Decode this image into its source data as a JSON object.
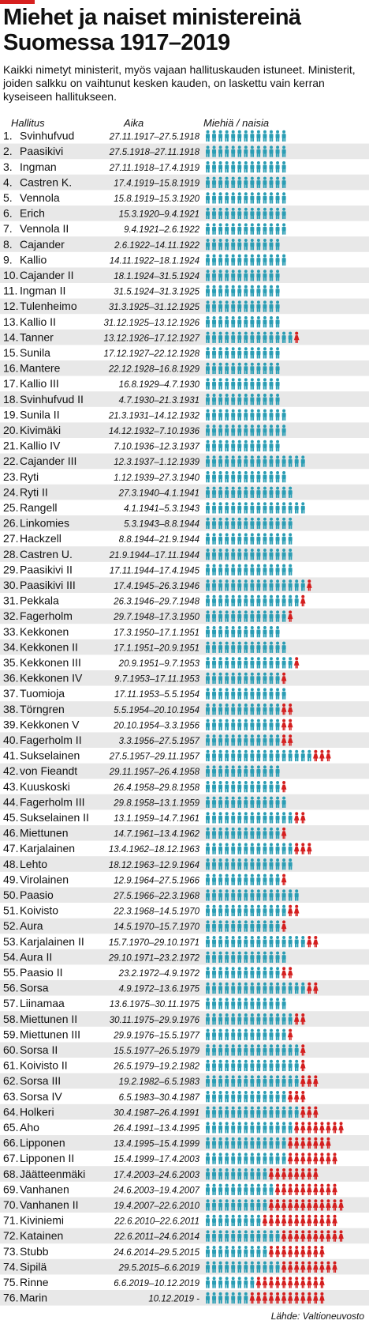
{
  "title": "Miehet ja naiset ministereinä Suomessa 1917–2019",
  "subtitle": "Kaikki nimetyt ministerit, myös vajaan hallituskauden istuneet. Ministerit, joiden salkku on vaihtunut kesken kauden, on laskettu vain kerran kyseiseen hallitukseen.",
  "source": "Lähde: Valtioneuvosto",
  "colors": {
    "men": "#2a9db4",
    "women": "#d41f1f",
    "stripe": "#e8e8e8",
    "accent": "#d7201f"
  },
  "icons": {
    "man": "man-icon",
    "woman": "woman-icon"
  },
  "chart_data": {
    "type": "table",
    "columns": [
      "Hallitus",
      "Aika",
      "Miehiä / naisia"
    ],
    "series_legend": [
      "men",
      "women"
    ],
    "rows": [
      {
        "num": "1.",
        "name": "Svinhufvud",
        "period": "27.11.1917–27.5.1918",
        "men": 13,
        "women": 0
      },
      {
        "num": "2.",
        "name": "Paasikivi",
        "period": "27.5.1918–27.11.1918",
        "men": 13,
        "women": 0
      },
      {
        "num": "3.",
        "name": "Ingman",
        "period": "27.11.1918–17.4.1919",
        "men": 13,
        "women": 0
      },
      {
        "num": "4.",
        "name": "Castren K.",
        "period": "17.4.1919–15.8.1919",
        "men": 13,
        "women": 0
      },
      {
        "num": "5.",
        "name": "Vennola",
        "period": "15.8.1919–15.3.1920",
        "men": 13,
        "women": 0
      },
      {
        "num": "6.",
        "name": "Erich",
        "period": "15.3.1920–9.4.1921",
        "men": 13,
        "women": 0
      },
      {
        "num": "7.",
        "name": "Vennola II",
        "period": "9.4.1921–2.6.1922",
        "men": 13,
        "women": 0
      },
      {
        "num": "8.",
        "name": "Cajander",
        "period": "2.6.1922–14.11.1922",
        "men": 12,
        "women": 0
      },
      {
        "num": "9.",
        "name": "Kallio",
        "period": "14.11.1922–18.1.1924",
        "men": 13,
        "women": 0
      },
      {
        "num": "10.",
        "name": "Cajander II",
        "period": "18.1.1924–31.5.1924",
        "men": 12,
        "women": 0
      },
      {
        "num": "11.",
        "name": "Ingman II",
        "period": "31.5.1924–31.3.1925",
        "men": 12,
        "women": 0
      },
      {
        "num": "12.",
        "name": "Tulenheimo",
        "period": "31.3.1925–31.12.1925",
        "men": 12,
        "women": 0
      },
      {
        "num": "13.",
        "name": "Kallio II",
        "period": "31.12.1925–13.12.1926",
        "men": 12,
        "women": 0
      },
      {
        "num": "14.",
        "name": "Tanner",
        "period": "13.12.1926–17.12.1927",
        "men": 14,
        "women": 1
      },
      {
        "num": "15.",
        "name": "Sunila",
        "period": "17.12.1927–22.12.1928",
        "men": 12,
        "women": 0
      },
      {
        "num": "16.",
        "name": "Mantere",
        "period": "22.12.1928–16.8.1929",
        "men": 12,
        "women": 0
      },
      {
        "num": "17.",
        "name": "Kallio III",
        "period": "16.8.1929–4.7.1930",
        "men": 12,
        "women": 0
      },
      {
        "num": "18.",
        "name": "Svinhufvud II",
        "period": "4.7.1930–21.3.1931",
        "men": 12,
        "women": 0
      },
      {
        "num": "19.",
        "name": "Sunila II",
        "period": "21.3.1931–14.12.1932",
        "men": 13,
        "women": 0
      },
      {
        "num": "20.",
        "name": "Kivimäki",
        "period": "14.12.1932–7.10.1936",
        "men": 13,
        "women": 0
      },
      {
        "num": "21.",
        "name": "Kallio IV",
        "period": "7.10.1936–12.3.1937",
        "men": 12,
        "women": 0
      },
      {
        "num": "22.",
        "name": "Cajander III",
        "period": "12.3.1937–1.12.1939",
        "men": 16,
        "women": 0
      },
      {
        "num": "23.",
        "name": "Ryti",
        "period": "1.12.1939–27.3.1940",
        "men": 13,
        "women": 0
      },
      {
        "num": "24.",
        "name": "Ryti II",
        "period": "27.3.1940–4.1.1941",
        "men": 14,
        "women": 0
      },
      {
        "num": "25.",
        "name": "Rangell",
        "period": "4.1.1941–5.3.1943",
        "men": 16,
        "women": 0
      },
      {
        "num": "26.",
        "name": "Linkomies",
        "period": "5.3.1943–8.8.1944",
        "men": 14,
        "women": 0
      },
      {
        "num": "27.",
        "name": "Hackzell",
        "period": "8.8.1944–21.9.1944",
        "men": 14,
        "women": 0
      },
      {
        "num": "28.",
        "name": "Castren U.",
        "period": "21.9.1944–17.11.1944",
        "men": 14,
        "women": 0
      },
      {
        "num": "29.",
        "name": "Paasikivi II",
        "period": "17.11.1944–17.4.1945",
        "men": 14,
        "women": 0
      },
      {
        "num": "30.",
        "name": "Paasikivi III",
        "period": "17.4.1945–26.3.1946",
        "men": 16,
        "women": 1
      },
      {
        "num": "31.",
        "name": "Pekkala",
        "period": "26.3.1946–29.7.1948",
        "men": 15,
        "women": 1
      },
      {
        "num": "32.",
        "name": "Fagerholm",
        "period": "29.7.1948–17.3.1950",
        "men": 13,
        "women": 1
      },
      {
        "num": "33.",
        "name": "Kekkonen",
        "period": "17.3.1950–17.1.1951",
        "men": 12,
        "women": 0
      },
      {
        "num": "34.",
        "name": "Kekkonen II",
        "period": "17.1.1951–20.9.1951",
        "men": 13,
        "women": 0
      },
      {
        "num": "35.",
        "name": "Kekkonen III",
        "period": "20.9.1951–9.7.1953",
        "men": 14,
        "women": 1
      },
      {
        "num": "36.",
        "name": "Kekkonen IV",
        "period": "9.7.1953–17.11.1953",
        "men": 12,
        "women": 1
      },
      {
        "num": "37.",
        "name": "Tuomioja",
        "period": "17.11.1953–5.5.1954",
        "men": 13,
        "women": 0
      },
      {
        "num": "38.",
        "name": "Törngren",
        "period": "5.5.1954–20.10.1954",
        "men": 12,
        "women": 2
      },
      {
        "num": "39.",
        "name": "Kekkonen V",
        "period": "20.10.1954–3.3.1956",
        "men": 12,
        "women": 2
      },
      {
        "num": "40.",
        "name": "Fagerholm II",
        "period": "3.3.1956–27.5.1957",
        "men": 12,
        "women": 2
      },
      {
        "num": "41.",
        "name": "Sukselainen",
        "period": "27.5.1957–29.11.1957",
        "men": 17,
        "women": 3
      },
      {
        "num": "42.",
        "name": "von Fieandt",
        "period": "29.11.1957–26.4.1958",
        "men": 12,
        "women": 0
      },
      {
        "num": "43.",
        "name": "Kuuskoski",
        "period": "26.4.1958–29.8.1958",
        "men": 12,
        "women": 1
      },
      {
        "num": "44.",
        "name": "Fagerholm III",
        "period": "29.8.1958–13.1.1959",
        "men": 13,
        "women": 0
      },
      {
        "num": "45.",
        "name": "Sukselainen II",
        "period": "13.1.1959–14.7.1961",
        "men": 14,
        "women": 2
      },
      {
        "num": "46.",
        "name": "Miettunen",
        "period": "14.7.1961–13.4.1962",
        "men": 12,
        "women": 1
      },
      {
        "num": "47.",
        "name": "Karjalainen",
        "period": "13.4.1962–18.12.1963",
        "men": 14,
        "women": 3
      },
      {
        "num": "48.",
        "name": "Lehto",
        "period": "18.12.1963–12.9.1964",
        "men": 14,
        "women": 0
      },
      {
        "num": "49.",
        "name": "Virolainen",
        "period": "12.9.1964–27.5.1966",
        "men": 12,
        "women": 1
      },
      {
        "num": "50.",
        "name": "Paasio",
        "period": "27.5.1966–22.3.1968",
        "men": 15,
        "women": 0
      },
      {
        "num": "51.",
        "name": "Koivisto",
        "period": "22.3.1968–14.5.1970",
        "men": 13,
        "women": 2
      },
      {
        "num": "52.",
        "name": "Aura",
        "period": "14.5.1970–15.7.1970",
        "men": 12,
        "women": 1
      },
      {
        "num": "53.",
        "name": "Karjalainen II",
        "period": "15.7.1970–29.10.1971",
        "men": 16,
        "women": 2
      },
      {
        "num": "54.",
        "name": "Aura II",
        "period": "29.10.1971–23.2.1972",
        "men": 13,
        "women": 0
      },
      {
        "num": "55.",
        "name": "Paasio II",
        "period": "23.2.1972–4.9.1972",
        "men": 12,
        "women": 2
      },
      {
        "num": "56.",
        "name": "Sorsa",
        "period": "4.9.1972–13.6.1975",
        "men": 16,
        "women": 2
      },
      {
        "num": "57.",
        "name": "Liinamaa",
        "period": "13.6.1975–30.11.1975",
        "men": 13,
        "women": 0
      },
      {
        "num": "58.",
        "name": "Miettunen II",
        "period": "30.11.1975–29.9.1976",
        "men": 14,
        "women": 2
      },
      {
        "num": "59.",
        "name": "Miettunen III",
        "period": "29.9.1976–15.5.1977",
        "men": 13,
        "women": 1
      },
      {
        "num": "60.",
        "name": "Sorsa II",
        "period": "15.5.1977–26.5.1979",
        "men": 15,
        "women": 1
      },
      {
        "num": "61.",
        "name": "Koivisto II",
        "period": "26.5.1979–19.2.1982",
        "men": 15,
        "women": 1
      },
      {
        "num": "62.",
        "name": "Sorsa III",
        "period": "19.2.1982–6.5.1983",
        "men": 15,
        "women": 3
      },
      {
        "num": "63.",
        "name": "Sorsa IV",
        "period": "6.5.1983–30.4.1987",
        "men": 13,
        "women": 3
      },
      {
        "num": "64.",
        "name": "Holkeri",
        "period": "30.4.1987–26.4.1991",
        "men": 15,
        "women": 3
      },
      {
        "num": "65.",
        "name": "Aho",
        "period": "26.4.1991–13.4.1995",
        "men": 14,
        "women": 8
      },
      {
        "num": "66.",
        "name": "Lipponen",
        "period": "13.4.1995–15.4.1999",
        "men": 13,
        "women": 7
      },
      {
        "num": "67.",
        "name": "Lipponen II",
        "period": "15.4.1999–17.4.2003",
        "men": 13,
        "women": 8
      },
      {
        "num": "68.",
        "name": "Jäätteenmäki",
        "period": "17.4.2003–24.6.2003",
        "men": 10,
        "women": 8
      },
      {
        "num": "69.",
        "name": "Vanhanen",
        "period": "24.6.2003–19.4.2007",
        "men": 11,
        "women": 10
      },
      {
        "num": "70.",
        "name": "Vanhanen II",
        "period": "19.4.2007–22.6.2010",
        "men": 10,
        "women": 12
      },
      {
        "num": "71.",
        "name": "Kiviniemi",
        "period": "22.6.2010–22.6.2011",
        "men": 9,
        "women": 12
      },
      {
        "num": "72.",
        "name": "Katainen",
        "period": "22.6.2011–24.6.2014",
        "men": 12,
        "women": 10
      },
      {
        "num": "73.",
        "name": "Stubb",
        "period": "24.6.2014–29.5.2015",
        "men": 10,
        "women": 9
      },
      {
        "num": "74.",
        "name": "Sipilä",
        "period": "29.5.2015–6.6.2019",
        "men": 12,
        "women": 9
      },
      {
        "num": "75.",
        "name": "Rinne",
        "period": "6.6.2019–10.12.2019",
        "men": 8,
        "women": 11
      },
      {
        "num": "76.",
        "name": "Marin",
        "period": "10.12.2019 -",
        "men": 7,
        "women": 12
      }
    ]
  }
}
